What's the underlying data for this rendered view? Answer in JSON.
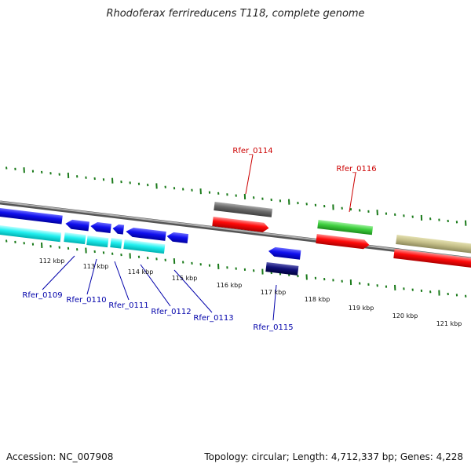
{
  "title": "Rhodoferax ferrireducens T118, complete genome",
  "footer": {
    "accession": "Accession: NC_007908",
    "summary": "Topology: circular; Length: 4,712,337 bp; Genes: 4,228"
  },
  "kbp_labels": [
    "112 kbp",
    "113 kbp",
    "114 kbp",
    "115 kbp",
    "116 kbp",
    "117 kbp",
    "118 kbp",
    "119 kbp",
    "120 kbp",
    "121 kbp"
  ],
  "genes_above": [
    "Rfer_0114",
    "Rfer_0116"
  ],
  "genes_below": [
    "Rfer_0109",
    "Rfer_0110",
    "Rfer_0111",
    "Rfer_0112",
    "Rfer_0113",
    "Rfer_0115"
  ],
  "colors": {
    "label_red": "#cc0000",
    "label_blue": "#0000aa",
    "tick_green": "#1a7a1a",
    "backbone": "#888888"
  }
}
